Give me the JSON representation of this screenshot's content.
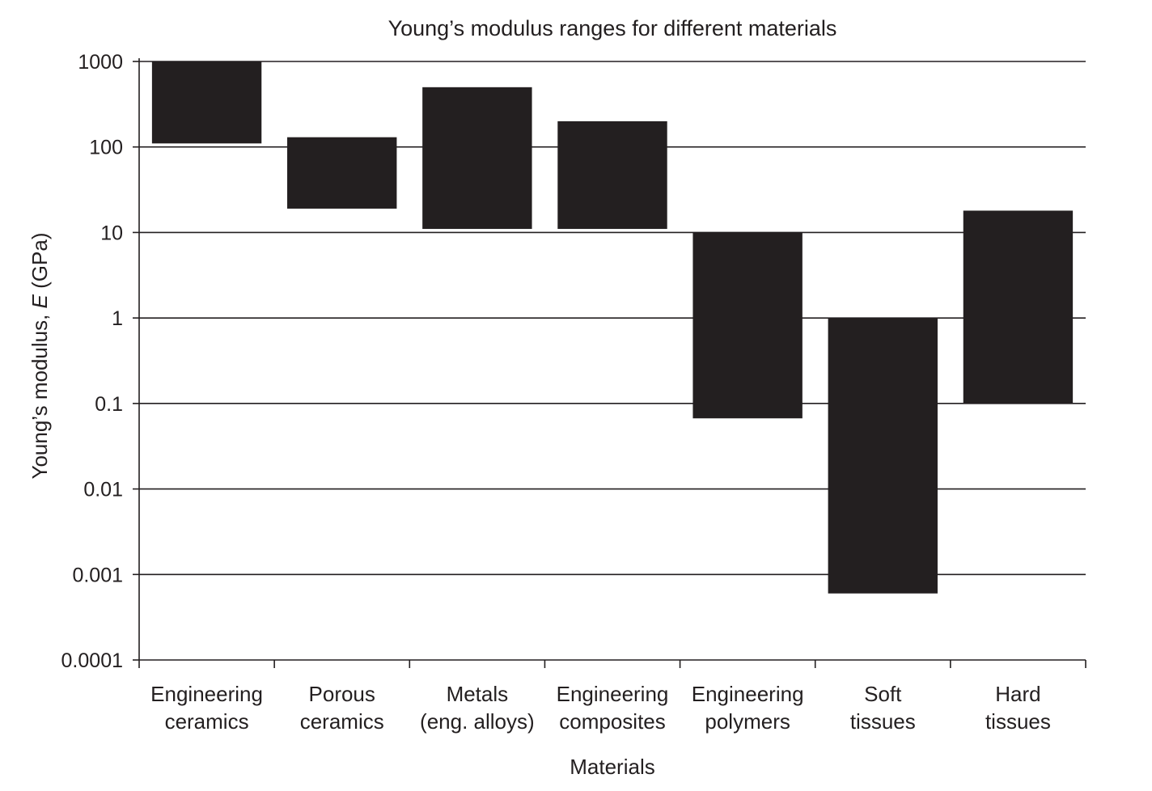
{
  "chart_data": {
    "type": "bar",
    "subtype": "floating-range",
    "title": "Young’s modulus ranges for different materials",
    "xlabel": "Materials",
    "ylabel_prefix": "Young’s modulus, ",
    "ylabel_symbol": "E",
    "ylabel_suffix": " (GPa)",
    "yscale": "log",
    "ylim": [
      0.0001,
      1000
    ],
    "grid": "horizontal",
    "yticks": [
      "1000",
      "100",
      "10",
      "1",
      "0.1",
      "0.01",
      "0.001",
      "0.0001"
    ],
    "categories": [
      [
        "Engineering",
        "ceramics"
      ],
      [
        "Porous",
        "ceramics"
      ],
      [
        "Metals",
        "(eng. alloys)"
      ],
      [
        "Engineering",
        "composites"
      ],
      [
        "Engineering",
        "polymers"
      ],
      [
        "Soft",
        "tissues"
      ],
      [
        "Hard",
        "tissues"
      ]
    ],
    "ranges": [
      [
        110,
        1000
      ],
      [
        19,
        130
      ],
      [
        11,
        500
      ],
      [
        11,
        200
      ],
      [
        0.067,
        10
      ],
      [
        0.0006,
        1
      ],
      [
        0.1,
        18
      ]
    ],
    "bar_color": "#231f20"
  }
}
